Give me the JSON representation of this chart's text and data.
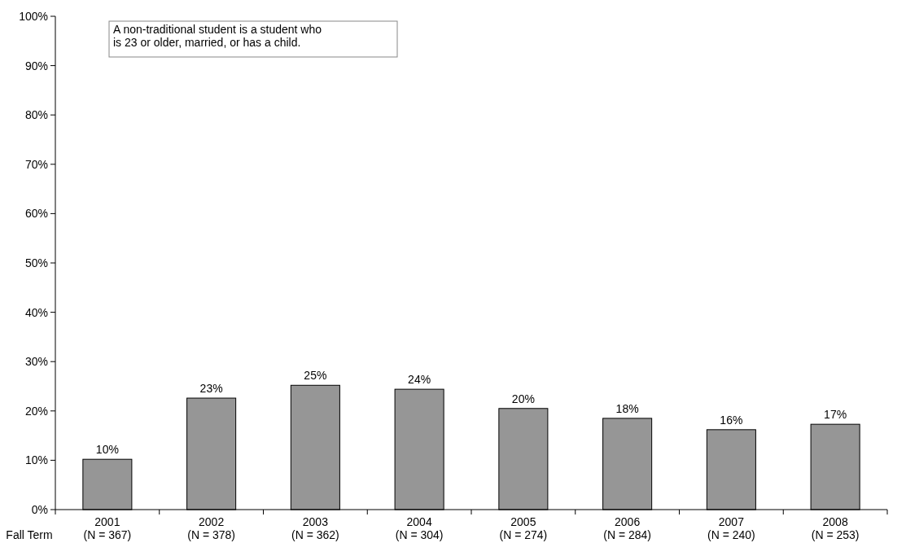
{
  "chart_data": {
    "type": "bar",
    "categories": [
      "2001\n(N = 367)",
      "2002\n(N = 378)",
      "2003\n(N = 362)",
      "2004\n(N = 304)",
      "2005\n(N = 274)",
      "2006\n(N = 284)",
      "2007\n(N = 240)",
      "2008\n(N = 253)"
    ],
    "values": [
      10.2,
      22.6,
      25.2,
      24.4,
      20.5,
      18.5,
      16.2,
      17.3
    ],
    "value_labels": [
      "10%",
      "23%",
      "25%",
      "24%",
      "20%",
      "18%",
      "16%",
      "17%"
    ],
    "color": "#969696",
    "xlabel": "Fall Term",
    "ylim": [
      0,
      100
    ],
    "yticks": [
      {
        "value": 0,
        "label": "0%"
      },
      {
        "value": 10,
        "label": "10%"
      },
      {
        "value": 20,
        "label": "20%"
      },
      {
        "value": 30,
        "label": "30%"
      },
      {
        "value": 40,
        "label": "40%"
      },
      {
        "value": 50,
        "label": "50%"
      },
      {
        "value": 60,
        "label": "60%"
      },
      {
        "value": 70,
        "label": "70%"
      },
      {
        "value": 80,
        "label": "80%"
      },
      {
        "value": 90,
        "label": "90%"
      },
      {
        "value": 100,
        "label": "100%"
      }
    ],
    "annotations": [
      "A non-traditional student is a student who is 23 or older, married, or has a child."
    ],
    "grid": false
  }
}
